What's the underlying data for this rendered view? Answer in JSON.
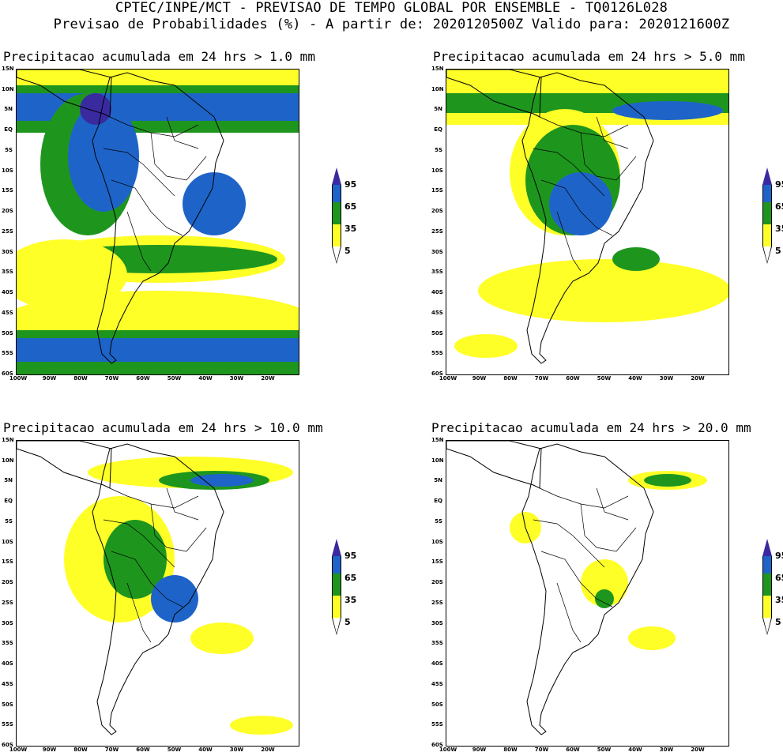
{
  "header": {
    "line1": "CPTEC/INPE/MCT - PREVISAO DE TEMPO GLOBAL POR ENSEMBLE - TQ0126L028",
    "line2": "Previsao de Probabilidades (%) -  A partir de: 2020120500Z  Valido para: 2020121600Z"
  },
  "axes": {
    "lat_labels": [
      "15N",
      "10N",
      "5N",
      "EQ",
      "5S",
      "10S",
      "15S",
      "20S",
      "25S",
      "30S",
      "35S",
      "40S",
      "45S",
      "50S",
      "55S",
      "60S"
    ],
    "lon_labels": [
      "100W",
      "90W",
      "80W",
      "70W",
      "60W",
      "50W",
      "40W",
      "30W",
      "20W"
    ]
  },
  "colorbar": {
    "labels": [
      "95",
      "65",
      "35",
      "5"
    ],
    "colors": {
      "c95": "#3a2aa0",
      "c65": "#1e64c8",
      "c35": "#1e961e",
      "c5": "#ffff28",
      "none": "#ffffff"
    }
  },
  "panels": [
    {
      "title": "Precipitacao acumulada em 24 hrs > 1.0 mm"
    },
    {
      "title": "Precipitacao acumulada em 24 hrs > 5.0 mm"
    },
    {
      "title": "Precipitacao acumulada em 24 hrs > 10.0 mm"
    },
    {
      "title": "Precipitacao acumulada em 24 hrs > 20.0 mm"
    }
  ]
}
